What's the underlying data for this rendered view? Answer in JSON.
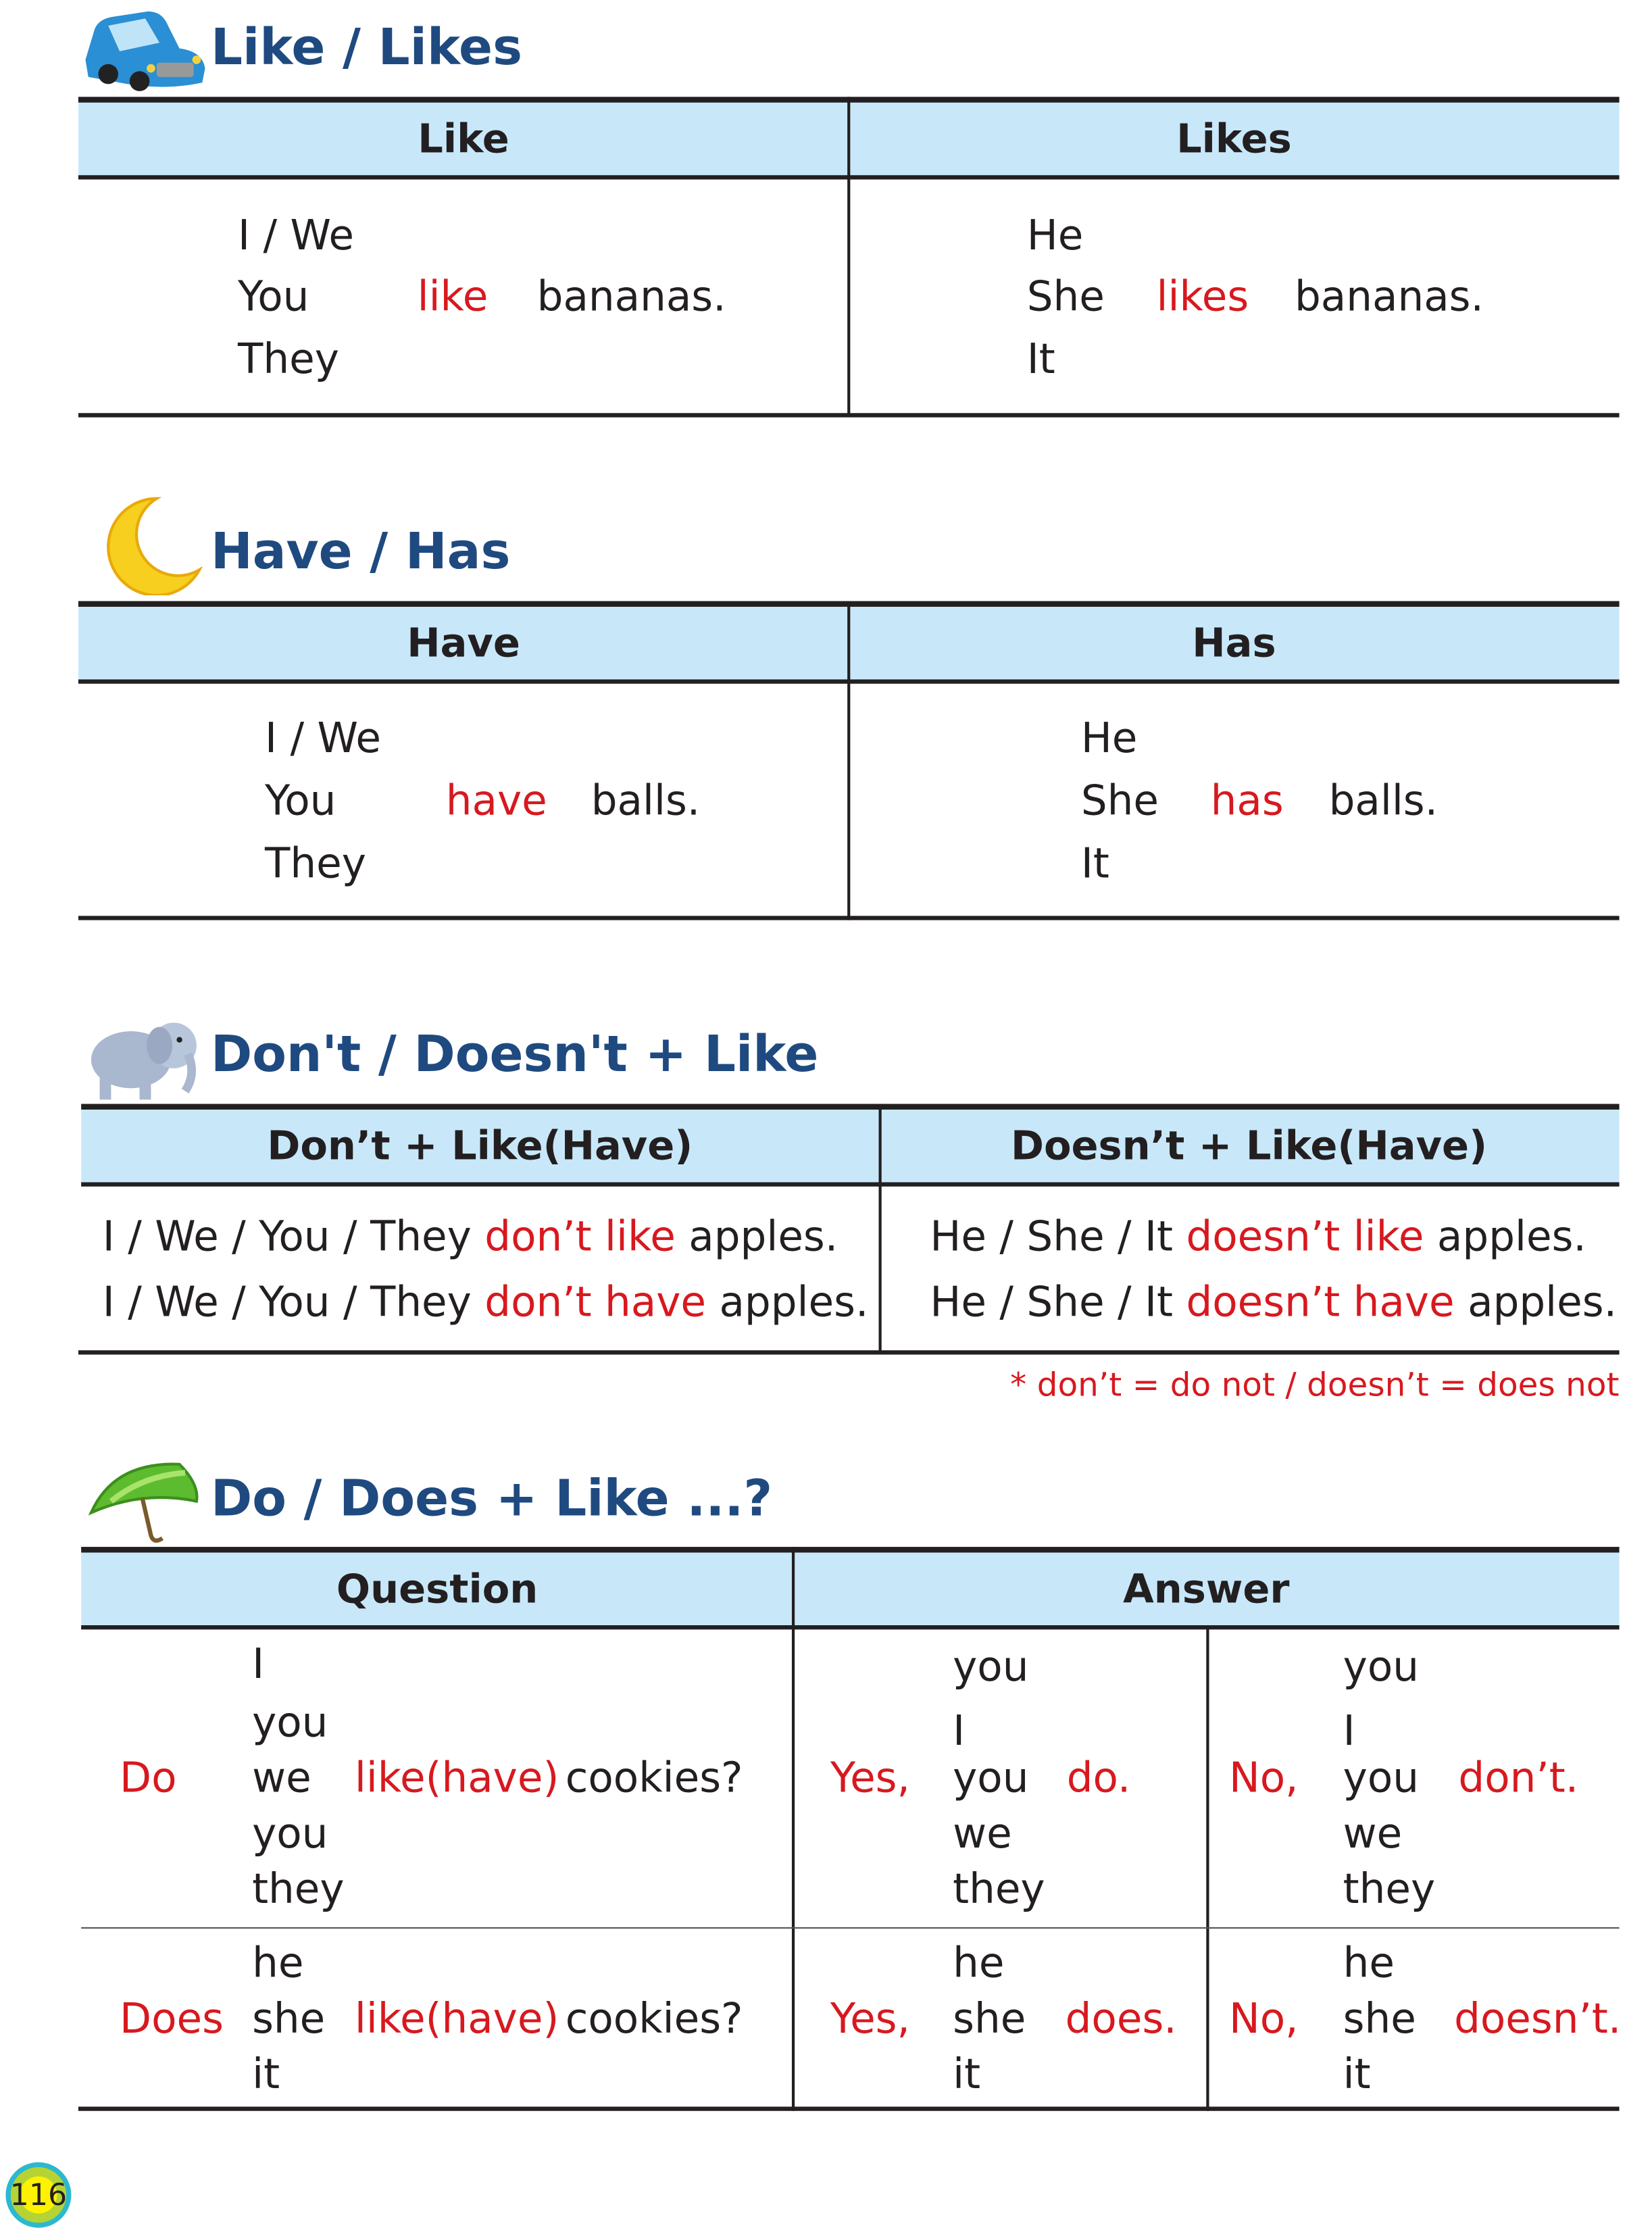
{
  "colors": {
    "title": "#1f4a80",
    "header_bg": "#c8e8fa",
    "highlight": "#d7191f"
  },
  "s1": {
    "icon": "car-icon",
    "title": "Like / Likes",
    "headers": [
      "Like",
      "Likes"
    ],
    "left": {
      "subjects": [
        "I / We",
        "You",
        "They"
      ],
      "verb": "like",
      "object": "bananas."
    },
    "right": {
      "subjects": [
        "He",
        "She",
        "It"
      ],
      "verb": "likes",
      "object": "bananas."
    }
  },
  "s2": {
    "icon": "moon-icon",
    "title": "Have / Has",
    "headers": [
      "Have",
      "Has"
    ],
    "left": {
      "subjects": [
        "I / We",
        "You",
        "They"
      ],
      "verb": "have",
      "object": "balls."
    },
    "right": {
      "subjects": [
        "He",
        "She",
        "It"
      ],
      "verb": "has",
      "object": "balls."
    }
  },
  "s3": {
    "icon": "elephant-icon",
    "title": "Don't / Doesn't + Like",
    "headers": [
      "Don’t + Like(Have)",
      "Doesn’t + Like(Have)"
    ],
    "left": [
      {
        "subject": "I / We / You / They",
        "verb": "don’t like",
        "object": "apples."
      },
      {
        "subject": "I / We / You / They",
        "verb": "don’t have",
        "object": "apples."
      }
    ],
    "right": [
      {
        "subject": "He / She / It",
        "verb": "doesn’t like",
        "object": "apples."
      },
      {
        "subject": "He / She / It",
        "verb": "doesn’t have",
        "object": "apples."
      }
    ],
    "note": "* don’t = do not / doesn’t = does not"
  },
  "s4": {
    "icon": "umbrella-icon",
    "title": "Do / Does + Like ...?",
    "headers": [
      "Question",
      "Answer"
    ],
    "rows": [
      {
        "aux": "Do",
        "subjects": [
          "I",
          "you",
          "we",
          "you",
          "they"
        ],
        "verb": "like(have)",
        "object": "cookies?",
        "yes": "Yes,",
        "yes_subjects": [
          "you",
          "I",
          "you",
          "we",
          "they"
        ],
        "yes_verb": "do.",
        "no": "No,",
        "no_subjects": [
          "you",
          "I",
          "you",
          "we",
          "they"
        ],
        "no_verb": "don’t."
      },
      {
        "aux": "Does",
        "subjects": [
          "he",
          "she",
          "it"
        ],
        "verb": "like(have)",
        "object": "cookies?",
        "yes": "Yes,",
        "yes_subjects": [
          "he",
          "she",
          "it"
        ],
        "yes_verb": "does.",
        "no": "No,",
        "no_subjects": [
          "he",
          "she",
          "it"
        ],
        "no_verb": "doesn’t."
      }
    ]
  },
  "page_number": "116"
}
